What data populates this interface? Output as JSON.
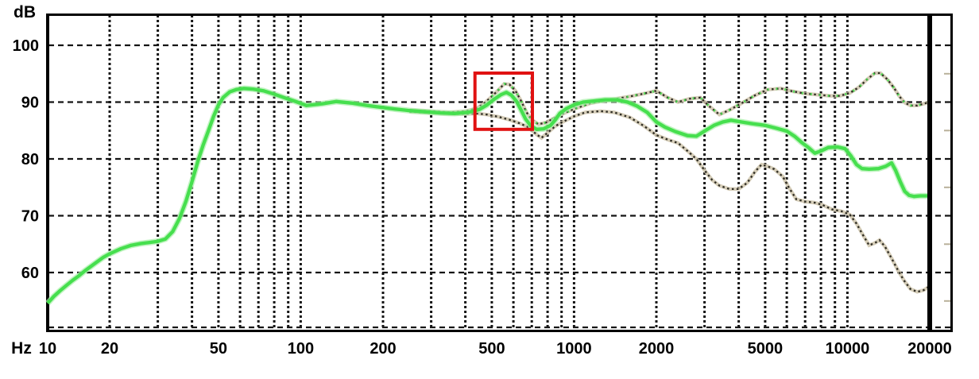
{
  "chart_data": {
    "type": "line",
    "xlabel": "Hz",
    "ylabel": "dB",
    "x_scale": "log",
    "xlim": [
      10,
      20000
    ],
    "ylim": [
      50,
      105
    ],
    "grid": true,
    "legend": "none",
    "x_ticks": [
      {
        "f": 10,
        "label": "10"
      },
      {
        "f": 20,
        "label": "20"
      },
      {
        "f": 50,
        "label": "50"
      },
      {
        "f": 100,
        "label": "100"
      },
      {
        "f": 200,
        "label": "200"
      },
      {
        "f": 500,
        "label": "500"
      },
      {
        "f": 1000,
        "label": "1000"
      },
      {
        "f": 2000,
        "label": "2000"
      },
      {
        "f": 5000,
        "label": "5000"
      },
      {
        "f": 10000,
        "label": "10000"
      },
      {
        "f": 20000,
        "label": "20000"
      }
    ],
    "y_ticks": [
      {
        "db": 100,
        "label": "100"
      },
      {
        "db": 90,
        "label": "90"
      },
      {
        "db": 80,
        "label": "80"
      },
      {
        "db": 70,
        "label": "70"
      },
      {
        "db": 60,
        "label": "60"
      }
    ],
    "y_gridlines": [
      100,
      90,
      80,
      70,
      60,
      50
    ],
    "y_minor_border_ticks": [
      95,
      85,
      75,
      65,
      55
    ],
    "colors": {
      "green": "#46df4e",
      "green_halo": "#aaefaa",
      "gray_dot_dark": "#2e2c24",
      "gray_halo": "#cfc6ad",
      "grid": "#141414",
      "frame": "#000000",
      "highlight_red": "#e01212",
      "minor_tick_gray": "#b8b09a"
    },
    "series": [
      {
        "name": "main-response-green",
        "style": "solid-thick",
        "points": [
          [
            10,
            54.6
          ],
          [
            11,
            55.8
          ],
          [
            12,
            56.8
          ],
          [
            13,
            57.7
          ],
          [
            14,
            58.6
          ],
          [
            15,
            59.4
          ],
          [
            16,
            60.3
          ],
          [
            17,
            61.1
          ],
          [
            18,
            61.9
          ],
          [
            19,
            62.7
          ],
          [
            20,
            63.3
          ],
          [
            22,
            64.2
          ],
          [
            24,
            64.8
          ],
          [
            26,
            65.1
          ],
          [
            28,
            65.3
          ],
          [
            30,
            65.5
          ],
          [
            32,
            65.9
          ],
          [
            34,
            67.2
          ],
          [
            36,
            69.5
          ],
          [
            38,
            72.5
          ],
          [
            40,
            76.0
          ],
          [
            42,
            79.5
          ],
          [
            44,
            82.5
          ],
          [
            46,
            85.0
          ],
          [
            48,
            87.5
          ],
          [
            50,
            89.5
          ],
          [
            52,
            90.8
          ],
          [
            55,
            91.8
          ],
          [
            58,
            92.2
          ],
          [
            62,
            92.4
          ],
          [
            67,
            92.3
          ],
          [
            73,
            92.0
          ],
          [
            80,
            91.4
          ],
          [
            88,
            90.7
          ],
          [
            96,
            90.1
          ],
          [
            105,
            89.4
          ],
          [
            120,
            89.7
          ],
          [
            135,
            90.1
          ],
          [
            155,
            89.8
          ],
          [
            175,
            89.4
          ],
          [
            195,
            89.1
          ],
          [
            220,
            88.8
          ],
          [
            250,
            88.5
          ],
          [
            285,
            88.3
          ],
          [
            325,
            88.1
          ],
          [
            365,
            88.0
          ],
          [
            410,
            88.2
          ],
          [
            450,
            88.7
          ],
          [
            480,
            89.5
          ],
          [
            510,
            90.5
          ],
          [
            540,
            91.3
          ],
          [
            565,
            91.7
          ],
          [
            590,
            91.2
          ],
          [
            615,
            90.2
          ],
          [
            640,
            88.6
          ],
          [
            665,
            87.0
          ],
          [
            695,
            85.8
          ],
          [
            730,
            85.2
          ],
          [
            775,
            85.3
          ],
          [
            820,
            85.9
          ],
          [
            855,
            86.9
          ],
          [
            886,
            88.0
          ],
          [
            940,
            88.9
          ],
          [
            1000,
            89.5
          ],
          [
            1080,
            90.0
          ],
          [
            1180,
            90.2
          ],
          [
            1300,
            90.4
          ],
          [
            1430,
            90.4
          ],
          [
            1570,
            90.0
          ],
          [
            1700,
            89.3
          ],
          [
            1850,
            88.2
          ],
          [
            2000,
            86.5
          ],
          [
            2150,
            85.6
          ],
          [
            2350,
            84.8
          ],
          [
            2600,
            84.1
          ],
          [
            2800,
            84.0
          ],
          [
            3000,
            84.9
          ],
          [
            3250,
            85.9
          ],
          [
            3500,
            86.5
          ],
          [
            3750,
            86.8
          ],
          [
            4100,
            86.5
          ],
          [
            4500,
            86.2
          ],
          [
            5000,
            85.9
          ],
          [
            5500,
            85.4
          ],
          [
            6000,
            84.9
          ],
          [
            6400,
            84.0
          ],
          [
            6800,
            82.9
          ],
          [
            7200,
            82.0
          ],
          [
            7600,
            81.0
          ],
          [
            8000,
            81.4
          ],
          [
            8500,
            82.0
          ],
          [
            9200,
            82.1
          ],
          [
            9800,
            81.8
          ],
          [
            10300,
            80.5
          ],
          [
            10800,
            79.0
          ],
          [
            11300,
            78.3
          ],
          [
            12000,
            78.2
          ],
          [
            13000,
            78.3
          ],
          [
            13800,
            78.7
          ],
          [
            14500,
            79.3
          ],
          [
            15000,
            78.0
          ],
          [
            15600,
            76.0
          ],
          [
            16200,
            74.3
          ],
          [
            16800,
            73.6
          ],
          [
            17500,
            73.4
          ],
          [
            18500,
            73.5
          ],
          [
            19500,
            73.5
          ],
          [
            20000,
            73.5
          ]
        ]
      },
      {
        "name": "upper-reference-dotted",
        "style": "dotted-gray-with-green-flecks",
        "points": [
          [
            250,
            88.6
          ],
          [
            300,
            88.4
          ],
          [
            350,
            88.2
          ],
          [
            400,
            88.4
          ],
          [
            440,
            88.9
          ],
          [
            470,
            89.8
          ],
          [
            500,
            91.0
          ],
          [
            530,
            92.2
          ],
          [
            555,
            93.2
          ],
          [
            580,
            93.1
          ],
          [
            610,
            92.0
          ],
          [
            640,
            90.2
          ],
          [
            670,
            88.2
          ],
          [
            700,
            86.9
          ],
          [
            740,
            86.1
          ],
          [
            790,
            86.4
          ],
          [
            840,
            87.1
          ],
          [
            886,
            87.7
          ],
          [
            1000,
            88.8
          ],
          [
            1150,
            89.8
          ],
          [
            1350,
            90.4
          ],
          [
            1600,
            91.0
          ],
          [
            1800,
            91.5
          ],
          [
            2000,
            92.0
          ],
          [
            2200,
            90.8
          ],
          [
            2400,
            90.0
          ],
          [
            2650,
            90.6
          ],
          [
            2900,
            90.8
          ],
          [
            3100,
            89.4
          ],
          [
            3400,
            87.8
          ],
          [
            3700,
            88.6
          ],
          [
            4100,
            89.8
          ],
          [
            4600,
            91.2
          ],
          [
            5100,
            92.2
          ],
          [
            5700,
            92.4
          ],
          [
            6300,
            91.9
          ],
          [
            7000,
            91.5
          ],
          [
            7800,
            91.3
          ],
          [
            8600,
            91.1
          ],
          [
            9400,
            91.1
          ],
          [
            10200,
            91.6
          ],
          [
            11000,
            92.6
          ],
          [
            11800,
            94.0
          ],
          [
            12600,
            95.1
          ],
          [
            13200,
            95.1
          ],
          [
            14000,
            94.0
          ],
          [
            14800,
            92.5
          ],
          [
            15500,
            91.0
          ],
          [
            16200,
            89.9
          ],
          [
            17000,
            89.4
          ],
          [
            18000,
            89.4
          ],
          [
            19000,
            89.7
          ],
          [
            20000,
            90.0
          ]
        ]
      },
      {
        "name": "lower-reference-dotted",
        "style": "dotted-gray",
        "points": [
          [
            250,
            88.3
          ],
          [
            300,
            88.1
          ],
          [
            350,
            87.9
          ],
          [
            400,
            87.9
          ],
          [
            440,
            88.0
          ],
          [
            480,
            87.8
          ],
          [
            530,
            87.4
          ],
          [
            580,
            86.9
          ],
          [
            630,
            86.3
          ],
          [
            680,
            85.6
          ],
          [
            730,
            84.3
          ],
          [
            760,
            83.7
          ],
          [
            800,
            84.6
          ],
          [
            850,
            85.7
          ],
          [
            900,
            86.4
          ],
          [
            1000,
            87.5
          ],
          [
            1100,
            88.2
          ],
          [
            1250,
            88.4
          ],
          [
            1400,
            88.2
          ],
          [
            1600,
            87.3
          ],
          [
            1800,
            85.8
          ],
          [
            2000,
            84.2
          ],
          [
            2200,
            83.4
          ],
          [
            2400,
            82.8
          ],
          [
            2600,
            81.4
          ],
          [
            2800,
            80.0
          ],
          [
            3000,
            78.0
          ],
          [
            3200,
            76.3
          ],
          [
            3400,
            75.3
          ],
          [
            3700,
            74.7
          ],
          [
            4000,
            74.7
          ],
          [
            4300,
            75.8
          ],
          [
            4600,
            77.8
          ],
          [
            4850,
            79.0
          ],
          [
            5100,
            78.7
          ],
          [
            5400,
            78.2
          ],
          [
            5800,
            76.9
          ],
          [
            6100,
            75.0
          ],
          [
            6500,
            72.9
          ],
          [
            7000,
            72.5
          ],
          [
            7600,
            72.3
          ],
          [
            8100,
            71.9
          ],
          [
            8800,
            71.1
          ],
          [
            9500,
            70.8
          ],
          [
            10200,
            70.2
          ],
          [
            10800,
            68.6
          ],
          [
            11400,
            66.6
          ],
          [
            12000,
            64.8
          ],
          [
            12600,
            65.2
          ],
          [
            13100,
            65.7
          ],
          [
            13700,
            64.6
          ],
          [
            14500,
            62.5
          ],
          [
            15300,
            60.4
          ],
          [
            16100,
            58.6
          ],
          [
            17000,
            57.1
          ],
          [
            18000,
            56.6
          ],
          [
            19000,
            56.9
          ],
          [
            20000,
            57.6
          ]
        ]
      }
    ],
    "annotations": {
      "highlight_box": {
        "freq_min": 434,
        "freq_max": 704,
        "db_min": 85.2,
        "db_max": 95.1
      },
      "marker_line": {
        "freq": 20000
      }
    }
  }
}
